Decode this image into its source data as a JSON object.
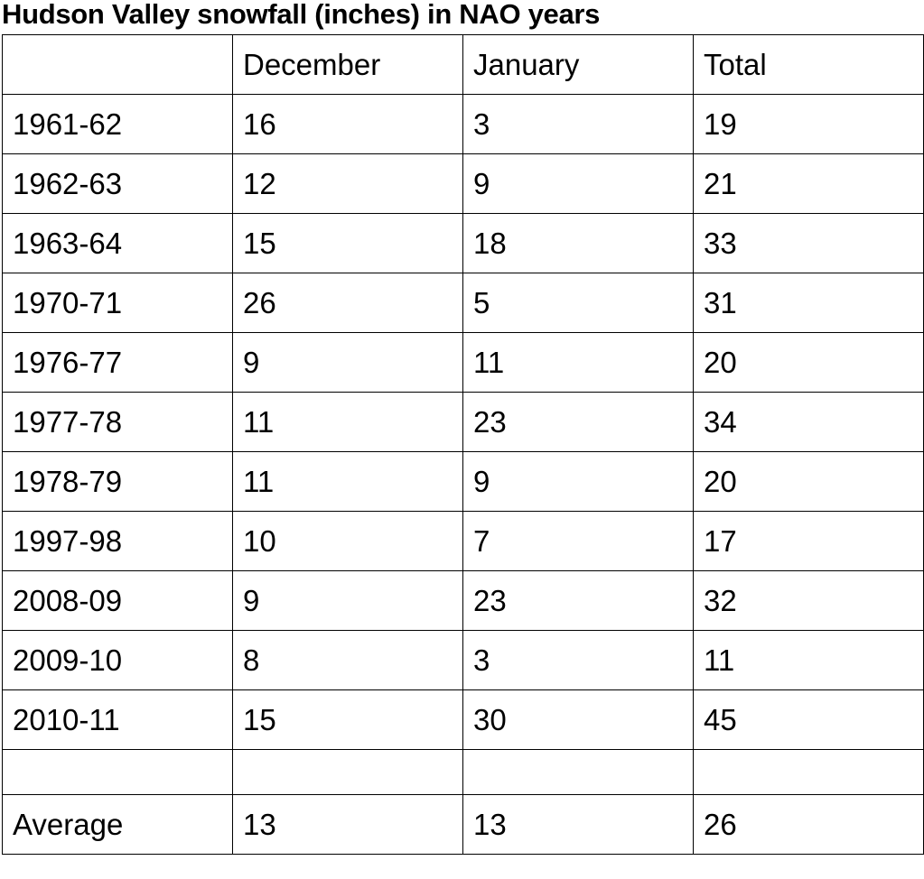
{
  "title": "Hudson Valley snowfall (inches) in NAO years",
  "table": {
    "columns": [
      "December",
      "January",
      "Total"
    ],
    "rows": [
      [
        "1961-62",
        16,
        3,
        19
      ],
      [
        "1962-63",
        12,
        9,
        21
      ],
      [
        "1963-64",
        15,
        18,
        33
      ],
      [
        "1970-71",
        26,
        5,
        31
      ],
      [
        "1976-77",
        9,
        11,
        20
      ],
      [
        "1977-78",
        11,
        23,
        34
      ],
      [
        "1978-79",
        11,
        9,
        20
      ],
      [
        "1997-98",
        10,
        7,
        17
      ],
      [
        "2008-09",
        9,
        23,
        32
      ],
      [
        "2009-10",
        8,
        3,
        11
      ],
      [
        "2010-11",
        15,
        30,
        45
      ]
    ],
    "average": [
      "Average",
      13,
      13,
      26
    ]
  }
}
